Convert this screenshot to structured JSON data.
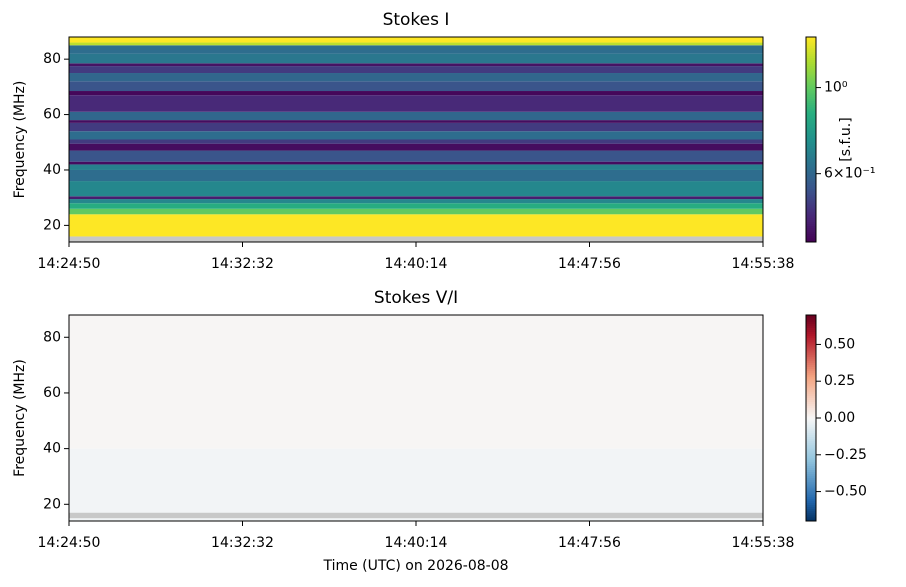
{
  "chart_data": [
    {
      "type": "heatmap",
      "title": "Stokes I",
      "y_label": "Frequency (MHz)",
      "xlim": [
        "14:24:50",
        "14:55:38"
      ],
      "xticks": [
        "14:24:50",
        "14:32:32",
        "14:40:14",
        "14:47:56",
        "14:55:38"
      ],
      "ylim": [
        14,
        88
      ],
      "yticks": [
        20,
        40,
        60,
        80
      ],
      "y_bins": [
        14,
        16,
        24,
        26,
        28,
        29.5,
        30.5,
        36,
        40,
        42,
        43,
        47,
        49.5,
        51,
        54,
        57,
        58,
        61,
        67,
        68.5,
        72,
        75,
        77.5,
        78.5,
        82,
        85,
        86,
        88
      ],
      "values": [
        null,
        1.35,
        1.0,
        0.85,
        0.7,
        0.45,
        0.7,
        0.62,
        0.68,
        0.42,
        0.55,
        0.42,
        0.5,
        0.62,
        0.5,
        0.42,
        0.6,
        0.47,
        0.41,
        0.55,
        0.6,
        0.5,
        0.43,
        0.65,
        0.62,
        1.2,
        1.35
      ],
      "colormap": "viridis",
      "color_scale": "log",
      "clim": [
        0.4,
        1.35
      ],
      "cticks": [
        {
          "value": 1,
          "label": "10⁰"
        },
        {
          "value": 0.6,
          "label": "6×10⁻¹"
        }
      ],
      "colorbar_label": "[s.f.u.]"
    },
    {
      "type": "heatmap",
      "title": "Stokes V/I",
      "y_label": "Frequency (MHz)",
      "x_label": "Time (UTC) on 2026-08-08",
      "xlim": [
        "14:24:50",
        "14:55:38"
      ],
      "xticks": [
        "14:24:50",
        "14:32:32",
        "14:40:14",
        "14:47:56",
        "14:55:38"
      ],
      "ylim": [
        14,
        88
      ],
      "yticks": [
        20,
        40,
        60,
        80
      ],
      "y_bins": [
        14,
        15,
        17,
        40,
        88
      ],
      "values": [
        -0.02,
        null,
        -0.015,
        0.008
      ],
      "colormap": "RdBu_r",
      "color_scale": "linear",
      "clim": [
        -0.7,
        0.7
      ],
      "cticks": [
        {
          "value": 0.5,
          "label": "0.50"
        },
        {
          "value": 0.25,
          "label": "0.25"
        },
        {
          "value": 0,
          "label": "0.00"
        },
        {
          "value": -0.25,
          "label": "−0.25"
        },
        {
          "value": -0.5,
          "label": "−0.50"
        }
      ]
    }
  ]
}
